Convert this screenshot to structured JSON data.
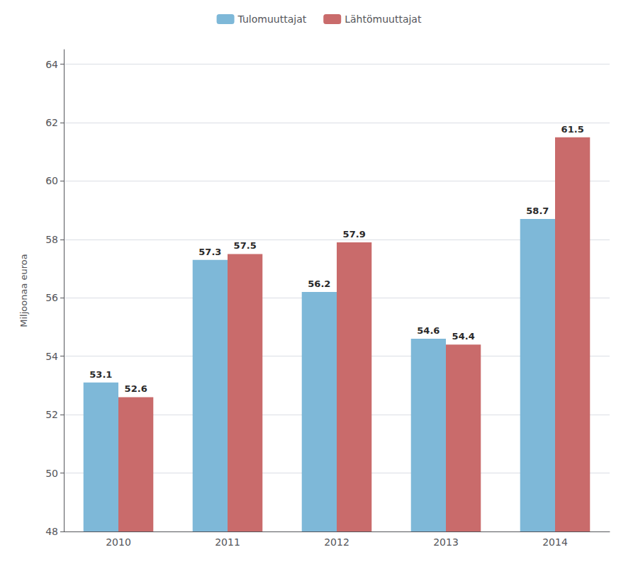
{
  "chart_data": {
    "type": "bar",
    "categories": [
      "2010",
      "2011",
      "2012",
      "2013",
      "2014"
    ],
    "series": [
      {
        "name": "Tulomuuttajat",
        "color": "#7eb8d8",
        "values": [
          53.1,
          57.3,
          56.2,
          54.6,
          58.7
        ]
      },
      {
        "name": "Lähtömuuttajat",
        "color": "#c96b6b",
        "values": [
          52.6,
          57.5,
          57.9,
          54.4,
          61.5
        ]
      }
    ],
    "ylabel": "Miljoonaa euroa",
    "ylim": [
      48,
      64.5
    ],
    "yticks": [
      48,
      50,
      52,
      54,
      56,
      58,
      60,
      62,
      64
    ],
    "grid": true,
    "legend": "top",
    "data_labels": true
  }
}
